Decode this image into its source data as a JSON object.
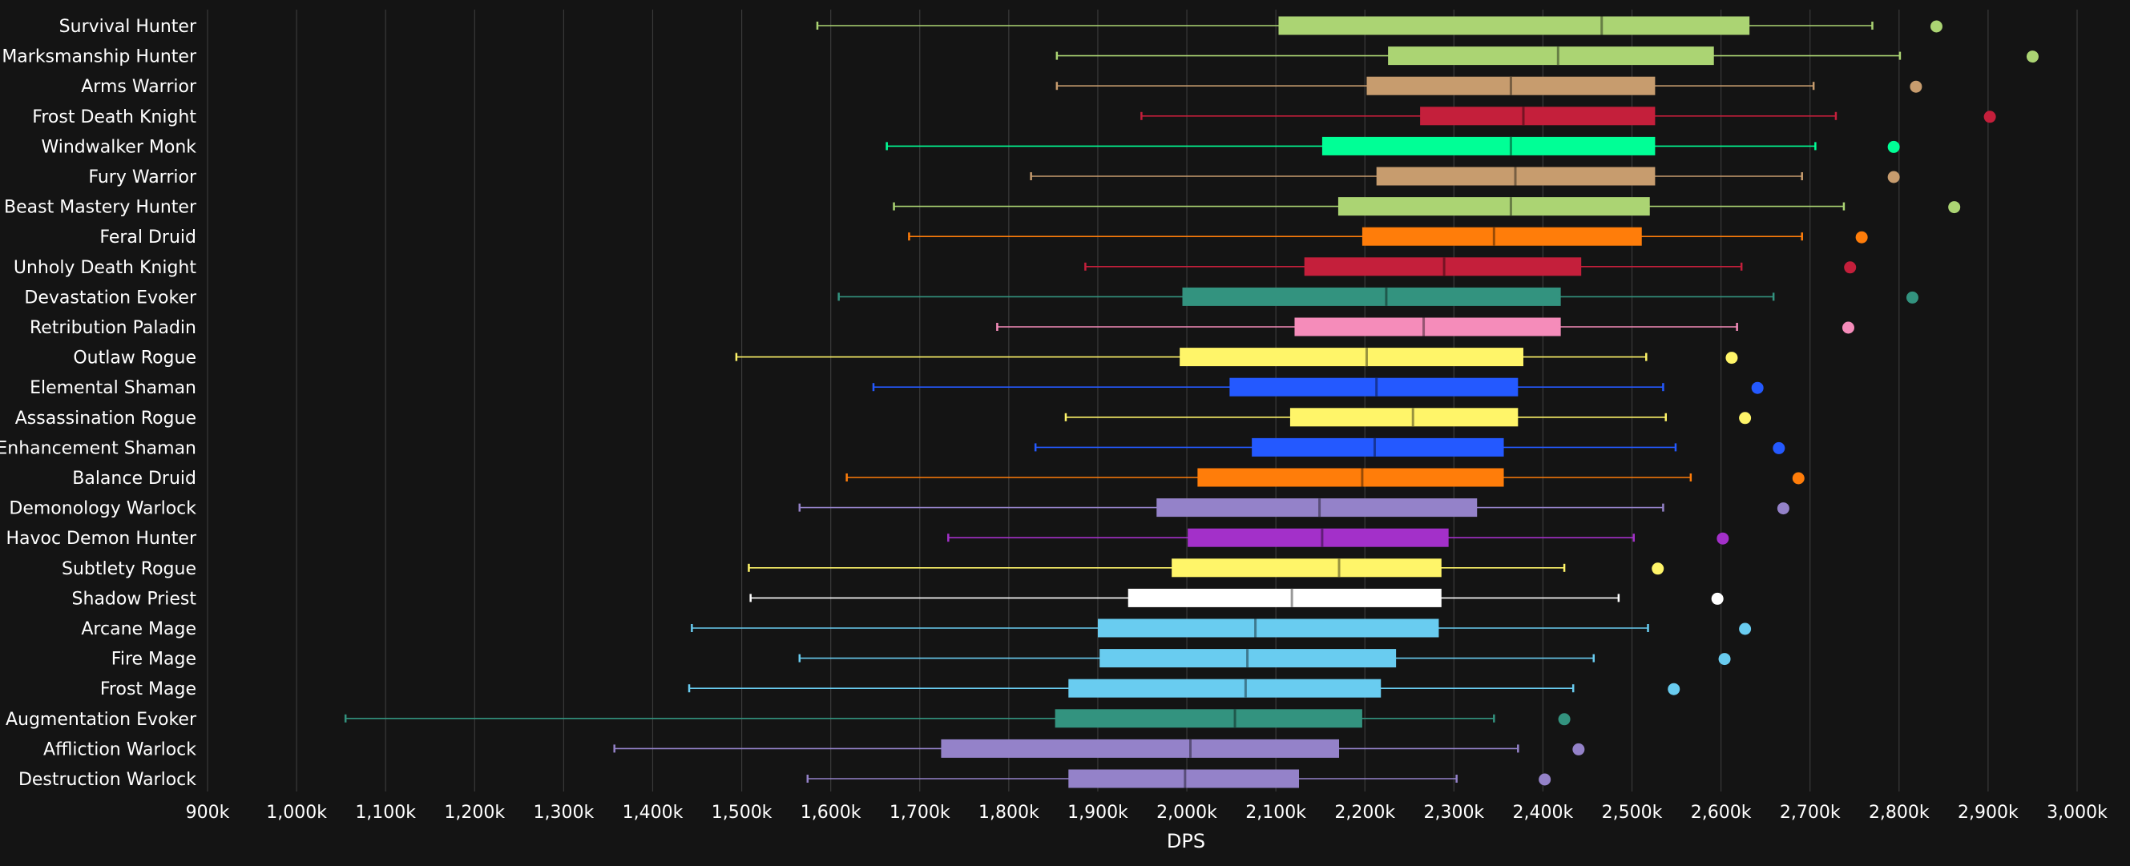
{
  "chart_data": {
    "type": "boxplot",
    "xlabel": "DPS",
    "xlim": [
      900,
      3000
    ],
    "x_ticks": [
      900,
      1000,
      1100,
      1200,
      1300,
      1400,
      1500,
      1600,
      1700,
      1800,
      1900,
      2000,
      2100,
      2200,
      2300,
      2400,
      2500,
      2600,
      2700,
      2800,
      2900,
      3000
    ],
    "x_tick_labels": [
      "900k",
      "1,000k",
      "1,100k",
      "1,200k",
      "1,300k",
      "1,400k",
      "1,500k",
      "1,600k",
      "1,700k",
      "1,800k",
      "1,900k",
      "2,000k",
      "2,100k",
      "2,200k",
      "2,300k",
      "2,400k",
      "2,500k",
      "2,600k",
      "2,700k",
      "2,800k",
      "2,900k",
      "3,000k"
    ],
    "grid": "vertical",
    "background": "#141414",
    "series": [
      {
        "name": "Survival Hunter",
        "color": "#abd473",
        "min": 1585,
        "q1": 2103,
        "median": 2466,
        "q3": 2632,
        "max": 2770,
        "outlier": 2842
      },
      {
        "name": "Marksmanship Hunter",
        "color": "#abd473",
        "min": 1854,
        "q1": 2226,
        "median": 2417,
        "q3": 2592,
        "max": 2801,
        "outlier": 2950
      },
      {
        "name": "Arms Warrior",
        "color": "#c79c6e",
        "min": 1854,
        "q1": 2202,
        "median": 2364,
        "q3": 2526,
        "max": 2704,
        "outlier": 2819
      },
      {
        "name": "Frost Death Knight",
        "color": "#c41f3b",
        "min": 1949,
        "q1": 2262,
        "median": 2378,
        "q3": 2526,
        "max": 2729,
        "outlier": 2902
      },
      {
        "name": "Windwalker Monk",
        "color": "#00ff96",
        "min": 1663,
        "q1": 2152,
        "median": 2364,
        "q3": 2526,
        "max": 2706,
        "outlier": 2794
      },
      {
        "name": "Fury Warrior",
        "color": "#c79c6e",
        "min": 1825,
        "q1": 2213,
        "median": 2369,
        "q3": 2526,
        "max": 2691,
        "outlier": 2794
      },
      {
        "name": "Beast Mastery Hunter",
        "color": "#abd473",
        "min": 1671,
        "q1": 2170,
        "median": 2364,
        "q3": 2520,
        "max": 2738,
        "outlier": 2862
      },
      {
        "name": "Feral Druid",
        "color": "#ff7d0a",
        "min": 1688,
        "q1": 2197,
        "median": 2345,
        "q3": 2511,
        "max": 2691,
        "outlier": 2758
      },
      {
        "name": "Unholy Death Knight",
        "color": "#c41f3b",
        "min": 1886,
        "q1": 2132,
        "median": 2289,
        "q3": 2443,
        "max": 2623,
        "outlier": 2745
      },
      {
        "name": "Devastation Evoker",
        "color": "#33937f",
        "min": 1609,
        "q1": 1995,
        "median": 2224,
        "q3": 2420,
        "max": 2659,
        "outlier": 2815
      },
      {
        "name": "Retribution Paladin",
        "color": "#f58cba",
        "min": 1787,
        "q1": 2121,
        "median": 2266,
        "q3": 2420,
        "max": 2618,
        "outlier": 2743
      },
      {
        "name": "Outlaw Rogue",
        "color": "#fff569",
        "min": 1494,
        "q1": 1992,
        "median": 2202,
        "q3": 2378,
        "max": 2516,
        "outlier": 2612
      },
      {
        "name": "Elemental Shaman",
        "color": "#2459ff",
        "min": 1648,
        "q1": 2048,
        "median": 2213,
        "q3": 2372,
        "max": 2535,
        "outlier": 2641
      },
      {
        "name": "Assassination Rogue",
        "color": "#fff569",
        "min": 1864,
        "q1": 2116,
        "median": 2254,
        "q3": 2372,
        "max": 2538,
        "outlier": 2627
      },
      {
        "name": "Enhancement Shaman",
        "color": "#2459ff",
        "min": 1830,
        "q1": 2073,
        "median": 2211,
        "q3": 2356,
        "max": 2549,
        "outlier": 2665
      },
      {
        "name": "Balance Druid",
        "color": "#ff7d0a",
        "min": 1618,
        "q1": 2012,
        "median": 2197,
        "q3": 2356,
        "max": 2566,
        "outlier": 2687
      },
      {
        "name": "Demonology Warlock",
        "color": "#9482c9",
        "min": 1565,
        "q1": 1966,
        "median": 2149,
        "q3": 2326,
        "max": 2535,
        "outlier": 2670
      },
      {
        "name": "Havoc Demon Hunter",
        "color": "#a330c9",
        "min": 1732,
        "q1": 2001,
        "median": 2152,
        "q3": 2294,
        "max": 2502,
        "outlier": 2602
      },
      {
        "name": "Subtlety Rogue",
        "color": "#fff569",
        "min": 1508,
        "q1": 1983,
        "median": 2171,
        "q3": 2286,
        "max": 2424,
        "outlier": 2529
      },
      {
        "name": "Shadow Priest",
        "color": "#ffffff",
        "min": 1510,
        "q1": 1934,
        "median": 2118,
        "q3": 2286,
        "max": 2485,
        "outlier": 2596
      },
      {
        "name": "Arcane Mage",
        "color": "#69ccf0",
        "min": 1444,
        "q1": 1900,
        "median": 2077,
        "q3": 2283,
        "max": 2518,
        "outlier": 2627
      },
      {
        "name": "Fire Mage",
        "color": "#69ccf0",
        "min": 1565,
        "q1": 1902,
        "median": 2068,
        "q3": 2235,
        "max": 2457,
        "outlier": 2604
      },
      {
        "name": "Frost Mage",
        "color": "#69ccf0",
        "min": 1441,
        "q1": 1867,
        "median": 2066,
        "q3": 2218,
        "max": 2434,
        "outlier": 2547
      },
      {
        "name": "Augmentation Evoker",
        "color": "#33937f",
        "min": 1055,
        "q1": 1852,
        "median": 2054,
        "q3": 2197,
        "max": 2345,
        "outlier": 2424
      },
      {
        "name": "Affliction Warlock",
        "color": "#9482c9",
        "min": 1357,
        "q1": 1724,
        "median": 2004,
        "q3": 2171,
        "max": 2372,
        "outlier": 2440
      },
      {
        "name": "Destruction Warlock",
        "color": "#9482c9",
        "min": 1574,
        "q1": 1867,
        "median": 1998,
        "q3": 2126,
        "max": 2303,
        "outlier": 2402
      }
    ]
  }
}
